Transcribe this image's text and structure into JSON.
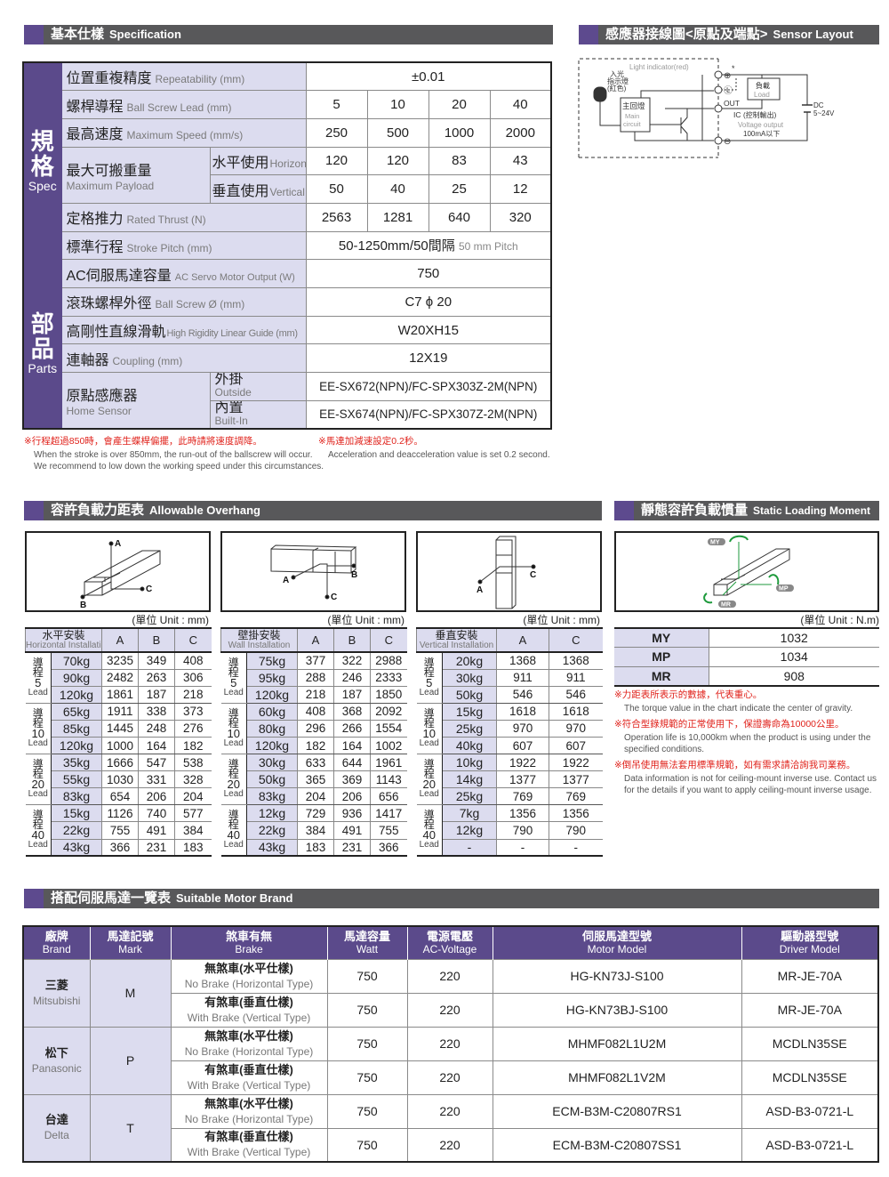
{
  "spec_section": {
    "zh": "基本仕樣",
    "en": "Specification"
  },
  "sensor_section": {
    "zh": "感應器接線圖<原點及端點>",
    "en": "Sensor Layout"
  },
  "spec": {
    "group_spec": {
      "zh": "規格",
      "en": "Spec"
    },
    "group_parts": {
      "zh": "部品",
      "en": "Parts"
    },
    "repeatability": {
      "zh": "位置重複精度",
      "en": "Repeatability (mm)",
      "value": "±0.01"
    },
    "lead": {
      "zh": "螺桿導程",
      "en": "Ball Screw Lead (mm)",
      "values": [
        "5",
        "10",
        "20",
        "40"
      ]
    },
    "speed": {
      "zh": "最高速度",
      "en": "Maximum Speed (mm/s)",
      "values": [
        "250",
        "500",
        "1000",
        "2000"
      ]
    },
    "payload": {
      "zh": "最大可搬重量",
      "en": "Maximum Payload",
      "horizontal": {
        "zh": "水平使用",
        "en": "Horizontal (kg)",
        "values": [
          "120",
          "120",
          "83",
          "43"
        ]
      },
      "vertical": {
        "zh": "垂直使用",
        "en": "Vertical (kg)",
        "values": [
          "50",
          "40",
          "25",
          "12"
        ]
      }
    },
    "thrust": {
      "zh": "定格推力",
      "en": "Rated Thrust (N)",
      "values": [
        "2563",
        "1281",
        "640",
        "320"
      ]
    },
    "stroke": {
      "zh": "標準行程",
      "en": "Stroke Pitch (mm)",
      "value": "50-1250mm/50間隔",
      "value_en": "50 mm Pitch"
    },
    "motor": {
      "zh": "AC伺服馬達容量",
      "en": "AC Servo Motor Output (W)",
      "value": "750"
    },
    "ballscrew": {
      "zh": "滾珠螺桿外徑",
      "en": "Ball Screw Ø (mm)",
      "value": "C7 ϕ 20"
    },
    "guide": {
      "zh": "高剛性直線滑軌",
      "en": "High Rigidity Linear Guide (mm)",
      "value": "W20XH15"
    },
    "coupling": {
      "zh": "連軸器",
      "en": "Coupling (mm)",
      "value": "12X19"
    },
    "home": {
      "zh": "原點感應器",
      "en": "Home Sensor",
      "outside": {
        "zh": "外掛",
        "en": "Outside",
        "value": "EE-SX672(NPN)/FC-SPX303Z-2M(NPN)"
      },
      "builtin": {
        "zh": "內置",
        "en": "Built-In",
        "value": "EE-SX674(NPN)/FC-SPX307Z-2M(NPN)"
      }
    }
  },
  "spec_notes": [
    {
      "zh": "※行程超過850時，會產生蝶桿偏擺，此時請將速度調降。",
      "en": [
        "When the stroke is over 850mm, the run-out of the ballscrew will occur.",
        "We recommend to low down the working speed under this circumstances."
      ]
    },
    {
      "zh": "※馬達加減速設定0.2秒。",
      "en": [
        "Acceleration and deacceleration value is set 0.2 second."
      ]
    }
  ],
  "sensor": {
    "light_indicator": "Light indicator(red)",
    "led_zh": [
      "入光",
      "指示燈",
      "(紅色)"
    ],
    "main_zh": "主回燈",
    "main_en": [
      "Main",
      "circuit"
    ],
    "load_zh": "負載",
    "load_en": "Load",
    "out": "OUT",
    "ic": "IC",
    "ic_zh": "(控制輸出)",
    "voltage_output": "Voltage output",
    "current": "100mA以下",
    "dc": "DC",
    "dc_range": "5~24V",
    "plus": "⊕",
    "minus": "⊖",
    "l": "Ⓛ",
    "asterisk": "*"
  },
  "overhang_section": {
    "zh": "容許負載力距表",
    "en": "Allowable Overhang"
  },
  "static_section": {
    "zh": "靜態容許負載慣量",
    "en": "Static Loading Moment"
  },
  "unit_mm": "(單位 Unit : mm)",
  "unit_nm": "(單位 Unit : N.m)",
  "overhang_tables": [
    {
      "title_zh": "水平安裝",
      "title_en": "Horizontal Installation",
      "columns": [
        "A",
        "B",
        "C"
      ],
      "groups": [
        {
          "zh": "導程",
          "lead": "5",
          "en": "Lead",
          "rows": [
            [
              "70kg",
              "3235",
              "349",
              "408"
            ],
            [
              "90kg",
              "2482",
              "263",
              "306"
            ],
            [
              "120kg",
              "1861",
              "187",
              "218"
            ]
          ]
        },
        {
          "zh": "導程",
          "lead": "10",
          "en": "Lead",
          "rows": [
            [
              "65kg",
              "1911",
              "338",
              "373"
            ],
            [
              "85kg",
              "1445",
              "248",
              "276"
            ],
            [
              "120kg",
              "1000",
              "164",
              "182"
            ]
          ]
        },
        {
          "zh": "導程",
          "lead": "20",
          "en": "Lead",
          "rows": [
            [
              "35kg",
              "1666",
              "547",
              "538"
            ],
            [
              "55kg",
              "1030",
              "331",
              "328"
            ],
            [
              "83kg",
              "654",
              "206",
              "204"
            ]
          ]
        },
        {
          "zh": "導程",
          "lead": "40",
          "en": "Lead",
          "rows": [
            [
              "15kg",
              "1126",
              "740",
              "577"
            ],
            [
              "22kg",
              "755",
              "491",
              "384"
            ],
            [
              "43kg",
              "366",
              "231",
              "183"
            ]
          ]
        }
      ]
    },
    {
      "title_zh": "壁掛安裝",
      "title_en": "Wall Installation",
      "columns": [
        "A",
        "B",
        "C"
      ],
      "groups": [
        {
          "zh": "導程",
          "lead": "5",
          "en": "Lead",
          "rows": [
            [
              "75kg",
              "377",
              "322",
              "2988"
            ],
            [
              "95kg",
              "288",
              "246",
              "2333"
            ],
            [
              "120kg",
              "218",
              "187",
              "1850"
            ]
          ]
        },
        {
          "zh": "導程",
          "lead": "10",
          "en": "Lead",
          "rows": [
            [
              "60kg",
              "408",
              "368",
              "2092"
            ],
            [
              "80kg",
              "296",
              "266",
              "1554"
            ],
            [
              "120kg",
              "182",
              "164",
              "1002"
            ]
          ]
        },
        {
          "zh": "導程",
          "lead": "20",
          "en": "Lead",
          "rows": [
            [
              "30kg",
              "633",
              "644",
              "1961"
            ],
            [
              "50kg",
              "365",
              "369",
              "1143"
            ],
            [
              "83kg",
              "204",
              "206",
              "656"
            ]
          ]
        },
        {
          "zh": "導程",
          "lead": "40",
          "en": "Lead",
          "rows": [
            [
              "12kg",
              "729",
              "936",
              "1417"
            ],
            [
              "22kg",
              "384",
              "491",
              "755"
            ],
            [
              "43kg",
              "183",
              "231",
              "366"
            ]
          ]
        }
      ]
    },
    {
      "title_zh": "垂直安裝",
      "title_en": "Vertical Installation",
      "columns": [
        "A",
        "C"
      ],
      "groups": [
        {
          "zh": "導程",
          "lead": "5",
          "en": "Lead",
          "rows": [
            [
              "20kg",
              "1368",
              "1368"
            ],
            [
              "30kg",
              "911",
              "911"
            ],
            [
              "50kg",
              "546",
              "546"
            ]
          ]
        },
        {
          "zh": "導程",
          "lead": "10",
          "en": "Lead",
          "rows": [
            [
              "15kg",
              "1618",
              "1618"
            ],
            [
              "25kg",
              "970",
              "970"
            ],
            [
              "40kg",
              "607",
              "607"
            ]
          ]
        },
        {
          "zh": "導程",
          "lead": "20",
          "en": "Lead",
          "rows": [
            [
              "10kg",
              "1922",
              "1922"
            ],
            [
              "14kg",
              "1377",
              "1377"
            ],
            [
              "25kg",
              "769",
              "769"
            ]
          ]
        },
        {
          "zh": "導程",
          "lead": "40",
          "en": "Lead",
          "rows": [
            [
              "7kg",
              "1356",
              "1356"
            ],
            [
              "12kg",
              "790",
              "790"
            ],
            [
              "-",
              "-",
              "-"
            ]
          ]
        }
      ]
    }
  ],
  "static_moment": [
    {
      "label": "MY",
      "value": "1032"
    },
    {
      "label": "MP",
      "value": "1034"
    },
    {
      "label": "MR",
      "value": "908"
    }
  ],
  "static_notes": [
    {
      "zh": "※力距表所表示的數據，代表重心。",
      "en": "The torque value in the chart indicate the center of gravity."
    },
    {
      "zh": "※符合型錄規範的正常使用下，保證壽命為10000公里。",
      "en": "Operation life is 10,000km when the product is using under the specified conditions."
    },
    {
      "zh": "※倒吊使用無法套用標準規範，如有需求請洽詢我司業務。",
      "en": "Data information is not for ceiling-mount inverse use. Contact us for the details if you want to apply ceiling-mount inverse usage."
    }
  ],
  "motor_section": {
    "zh": "搭配伺服馬達一覽表",
    "en": "Suitable Motor Brand"
  },
  "motor_table": {
    "headers": [
      {
        "zh": "廠牌",
        "en": "Brand"
      },
      {
        "zh": "馬達記號",
        "en": "Mark"
      },
      {
        "zh": "煞車有無",
        "en": "Brake"
      },
      {
        "zh": "馬達容量",
        "en": "Watt"
      },
      {
        "zh": "電源電壓",
        "en": "AC-Voltage"
      },
      {
        "zh": "伺服馬達型號",
        "en": "Motor Model"
      },
      {
        "zh": "驅動器型號",
        "en": "Driver Model"
      }
    ],
    "brands": [
      {
        "zh": "三菱",
        "en": "Mitsubishi",
        "mark": "M",
        "rows": [
          {
            "brake_zh": "無煞車(水平仕樣)",
            "brake_en": "No Brake (Horizontal Type)",
            "watt": "750",
            "volt": "220",
            "model": "HG-KN73J-S100",
            "driver": "MR-JE-70A"
          },
          {
            "brake_zh": "有煞車(垂直仕樣)",
            "brake_en": "With Brake (Vertical Type)",
            "watt": "750",
            "volt": "220",
            "model": "HG-KN73BJ-S100",
            "driver": "MR-JE-70A"
          }
        ]
      },
      {
        "zh": "松下",
        "en": "Panasonic",
        "mark": "P",
        "rows": [
          {
            "brake_zh": "無煞車(水平仕樣)",
            "brake_en": "No Brake (Horizontal Type)",
            "watt": "750",
            "volt": "220",
            "model": "MHMF082L1U2M",
            "driver": "MCDLN35SE"
          },
          {
            "brake_zh": "有煞車(垂直仕樣)",
            "brake_en": "With Brake (Vertical Type)",
            "watt": "750",
            "volt": "220",
            "model": "MHMF082L1V2M",
            "driver": "MCDLN35SE"
          }
        ]
      },
      {
        "zh": "台達",
        "en": "Delta",
        "mark": "T",
        "rows": [
          {
            "brake_zh": "無煞車(水平仕樣)",
            "brake_en": "No Brake (Horizontal Type)",
            "watt": "750",
            "volt": "220",
            "model": "ECM-B3M-C20807RS1",
            "driver": "ASD-B3-0721-L"
          },
          {
            "brake_zh": "有煞車(垂直仕樣)",
            "brake_en": "With Brake (Vertical Type)",
            "watt": "750",
            "volt": "220",
            "model": "ECM-B3M-C20807SS1",
            "driver": "ASD-B3-0721-L"
          }
        ]
      }
    ]
  },
  "colors": {
    "accent_purple": "#5b4a8b",
    "label_bg": "#dcdcef",
    "bar_gray": "#58585a",
    "note_red": "#e0231c",
    "moment_arrow": "#1e9a3c"
  }
}
